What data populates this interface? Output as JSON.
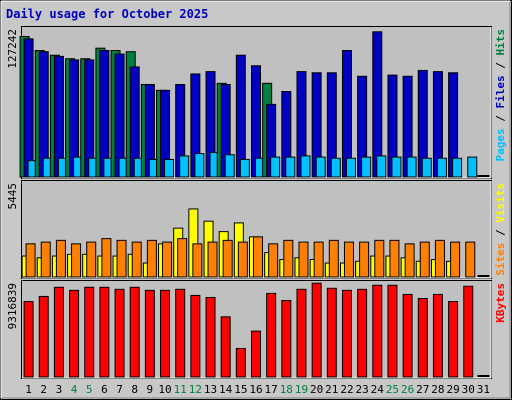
{
  "chart_data": {
    "type": "bar",
    "title": "Daily usage for October 2025",
    "days": [
      "1",
      "2",
      "3",
      "4",
      "5",
      "6",
      "7",
      "8",
      "9",
      "10",
      "11",
      "12",
      "13",
      "14",
      "15",
      "16",
      "17",
      "18",
      "19",
      "20",
      "21",
      "22",
      "23",
      "24",
      "25",
      "26",
      "27",
      "28",
      "29",
      "30",
      "31"
    ],
    "weekend_days": [
      "4",
      "5",
      "11",
      "12",
      "18",
      "19",
      "25",
      "26"
    ],
    "panels": [
      {
        "id": "hits",
        "max_label": "127242",
        "ymax": 127242,
        "right_label_parts": [
          "Pages",
          " / ",
          "Files",
          " / ",
          "Hits"
        ],
        "right_label_colors": [
          "#00c0ff",
          "#000000",
          "#0000c0",
          "#000000",
          "#008040"
        ],
        "series": [
          {
            "name": "Hits",
            "color": "#008040",
            "values": [
              120000,
              108000,
              104000,
              101000,
              101000,
              110000,
              108000,
              107000,
              79000,
              74000,
              0,
              0,
              0,
              80000,
              0,
              0,
              80000,
              0,
              0,
              0,
              0,
              0,
              0,
              0,
              0,
              0,
              0,
              0,
              0,
              0,
              0
            ]
          },
          {
            "name": "Files",
            "color": "#0000c0",
            "values": [
              118000,
              107000,
              103000,
              100000,
              100000,
              108000,
              105000,
              94000,
              79000,
              74000,
              79000,
              88000,
              90000,
              79000,
              104000,
              95000,
              62000,
              73000,
              90000,
              89000,
              89000,
              108000,
              86000,
              124000,
              87000,
              86000,
              91000,
              90000,
              89000,
              0,
              0
            ]
          },
          {
            "name": "Pages",
            "color": "#00c0ff",
            "values": [
              14000,
              16000,
              16000,
              17000,
              16000,
              16000,
              16000,
              16000,
              15000,
              15000,
              18000,
              20000,
              21000,
              19000,
              15000,
              16000,
              17000,
              17000,
              18000,
              17000,
              16000,
              16000,
              17000,
              18000,
              17000,
              17000,
              16000,
              16000,
              16000,
              17000,
              0
            ]
          }
        ]
      },
      {
        "id": "visits",
        "max_label": "5445",
        "ymax": 5445,
        "right_label_parts": [
          "Sites",
          " / ",
          "Visits"
        ],
        "right_label_colors": [
          "#ff8000",
          "#000000",
          "#ffff00"
        ],
        "series": [
          {
            "name": "Visits",
            "color": "#ffff00",
            "values": [
              1200,
              1100,
              1200,
              1300,
              1300,
              1200,
              1200,
              1300,
              800,
              1900,
              2800,
              3900,
              3200,
              2600,
              3100,
              2300,
              1400,
              1000,
              1100,
              1000,
              800,
              800,
              900,
              1200,
              1200,
              1100,
              900,
              1000,
              900,
              0,
              0
            ]
          },
          {
            "name": "Sites",
            "color": "#ff8000",
            "values": [
              1900,
              2000,
              2100,
              1900,
              2000,
              2200,
              2100,
              2000,
              2100,
              2000,
              2200,
              1900,
              2000,
              2100,
              2000,
              2300,
              1900,
              2100,
              2000,
              2000,
              2100,
              2000,
              2000,
              2100,
              2100,
              1900,
              2000,
              2100,
              2000,
              2000,
              0
            ]
          }
        ]
      },
      {
        "id": "kbytes",
        "max_label": "9316839",
        "ymax": 9316839,
        "right_label_parts": [
          "KBytes"
        ],
        "right_label_colors": [
          "#ff0000"
        ],
        "series": [
          {
            "name": "KBytes",
            "color": "#ff0000",
            "values": [
              7400000,
              7900000,
              8800000,
              8500000,
              8800000,
              8800000,
              8600000,
              8800000,
              8500000,
              8500000,
              8600000,
              8000000,
              7800000,
              5900000,
              2800000,
              4500000,
              8200000,
              7500000,
              8600000,
              9200000,
              8700000,
              8500000,
              8600000,
              9000000,
              9000000,
              8100000,
              7700000,
              8100000,
              7400000,
              8900000,
              0
            ]
          }
        ]
      }
    ]
  }
}
